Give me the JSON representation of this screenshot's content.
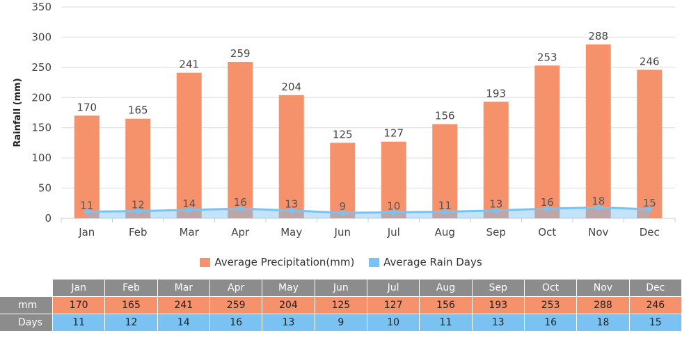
{
  "chart_data": {
    "type": "bar",
    "ylabel": "Rainfall (mm)",
    "ylim": [
      0,
      350
    ],
    "yticks": [
      0,
      50,
      100,
      150,
      200,
      250,
      300,
      350
    ],
    "grid": true,
    "legend_position": "bottom",
    "categories": [
      "Jan",
      "Feb",
      "Mar",
      "Apr",
      "May",
      "Jun",
      "Jul",
      "Aug",
      "Sep",
      "Oct",
      "Nov",
      "Dec"
    ],
    "series": [
      {
        "name": "Average Precipitation(mm)",
        "type": "bar",
        "color": "#f5916b",
        "values": [
          170,
          165,
          241,
          259,
          204,
          125,
          127,
          156,
          193,
          253,
          288,
          246
        ]
      },
      {
        "name": "Average Rain Days",
        "type": "area-line",
        "color": "#79c2f1",
        "values": [
          11,
          12,
          14,
          16,
          13,
          9,
          10,
          11,
          13,
          16,
          18,
          15
        ]
      }
    ]
  },
  "legend": {
    "precip": "Average Precipitation(mm)",
    "days": "Average Rain Days"
  },
  "table": {
    "row_mm": "mm",
    "row_days": "Days"
  }
}
